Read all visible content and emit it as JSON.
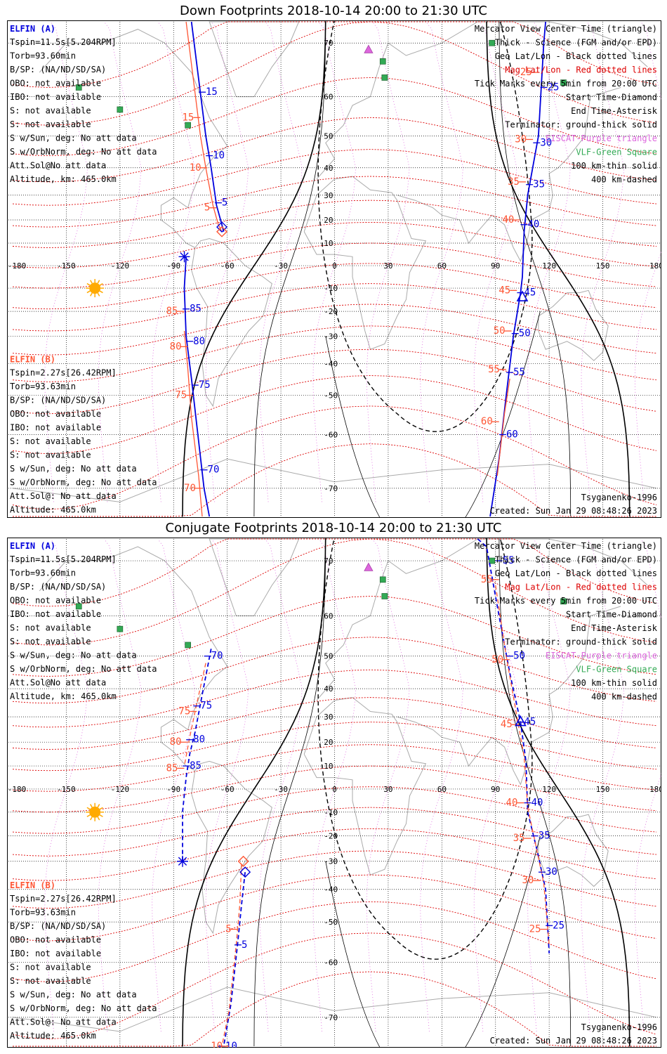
{
  "colors": {
    "elfin_a": "#0000dd",
    "elfin_b": "#ff5533",
    "mag_lines": "#dd0000",
    "eiscat": "#dd66dd",
    "vlf": "#33aa55",
    "sun": "#ffaa00",
    "coast": "#aaaaaa"
  },
  "common": {
    "lon_ticks": [
      "-180",
      "-150",
      "-120",
      "-90",
      "-60",
      "-30",
      "0",
      "30",
      "60",
      "90",
      "120",
      "150",
      "180"
    ],
    "lat_ticks": [
      "70",
      "60",
      "50",
      "40",
      "30",
      "20",
      "10",
      "0",
      "-10",
      "-20",
      "-30",
      "-40",
      "-50",
      "-60",
      "-70"
    ],
    "legend_right": [
      {
        "text": "Mercator View Center Time (triangle)",
        "color": "#000000"
      },
      {
        "text": "Thick - Science (FGM and/or EPD)",
        "color": "#000000"
      },
      {
        "text": "Geo Lat/Lon - Black dotted lines",
        "color": "#000000"
      },
      {
        "text": "Mag Lat/Lon - Red dotted lines",
        "color": "#dd0000"
      },
      {
        "text": "Tick Marks every 5min from 20:00 UTC",
        "color": "#000000"
      },
      {
        "text": "Start Time-Diamond",
        "color": "#000000"
      },
      {
        "text": "End Time-Asterisk",
        "color": "#000000"
      },
      {
        "text": "Terminator: ground-thick solid",
        "color": "#000000"
      },
      {
        "text": "EISCAT-Purple triangle",
        "color": "#dd66dd"
      },
      {
        "text": "VLF-Green Square",
        "color": "#33aa55"
      },
      {
        "text": "100 km-thin solid",
        "color": "#000000"
      },
      {
        "text": "400 km-dashed",
        "color": "#000000"
      }
    ],
    "info_a": {
      "name": "ELFIN (A)",
      "lines": [
        "Tspin=11.5s[5.204RPM]",
        "Torb=93.60min",
        "B/SP: (NA/ND/SD/SA)",
        "OBO: not available",
        "IBO: not available",
        "S: not available",
        "S: not available",
        "S w/Sun, deg: No att data",
        "S w/OrbNorm, deg: No att data",
        "Att.Sol@No att data",
        "Altitude, km: 465.0km"
      ]
    },
    "info_b": {
      "name": "ELFIN (B)",
      "lines": [
        "Tspin=2.27s[26.42RPM]",
        "Torb=93.63min",
        "B/SP: (NA/ND/SD/SA)",
        "OBO: not available",
        "IBO: not available",
        "S: not available",
        "S: not available",
        "S w/Sun, deg: No att data",
        "S w/OrbNorm, deg: No att data",
        "Att.Sol@: No att data",
        "Altitude: 465.0km"
      ]
    },
    "model": "Tsyganenko-1996",
    "created": "Created: Sun Jan 29 08:48:26 2023"
  },
  "panels": [
    {
      "title": "Down Footprints 2018-10-14 20:00 to 21:30 UTC",
      "tracks": [
        {
          "sat": "b",
          "dashed": false,
          "pts": [
            [
              -83,
              82
            ],
            [
              -75,
              50
            ],
            [
              -72,
              40
            ],
            [
              -68,
              26
            ],
            [
              -65,
              18
            ],
            [
              -63,
              15
            ]
          ]
        },
        {
          "sat": "a",
          "dashed": false,
          "pts": [
            [
              -80,
              82
            ],
            [
              -72,
              50
            ],
            [
              -69,
              40
            ],
            [
              -66,
              26
            ],
            [
              -63,
              18
            ],
            [
              -62,
              15
            ]
          ]
        },
        {
          "sat": "a",
          "dashed": false,
          "pts": [
            [
              -83,
              4
            ],
            [
              -84,
              -10
            ],
            [
              -83,
              -30
            ],
            [
              -80,
              -45
            ],
            [
              -77,
              -58
            ],
            [
              -73,
              -70
            ],
            [
              -70,
              -80
            ]
          ]
        },
        {
          "sat": "b",
          "dashed": false,
          "pts": [
            [
              -84,
              -28
            ],
            [
              -82,
              -42
            ],
            [
              -80,
              -56
            ],
            [
              -76,
              -68
            ],
            [
              -74,
              -80
            ]
          ]
        },
        {
          "sat": "a",
          "dashed": false,
          "pts": [
            [
              118,
              82
            ],
            [
              117,
              70
            ],
            [
              114,
              50
            ],
            [
              108,
              30
            ],
            [
              106,
              15
            ],
            [
              105,
              -5
            ],
            [
              104,
              -12
            ]
          ]
        },
        {
          "sat": "a",
          "dashed": false,
          "pts": [
            [
              104,
              -12
            ],
            [
              100,
              -30
            ],
            [
              96,
              -50
            ],
            [
              92,
              -65
            ],
            [
              87,
              -80
            ]
          ]
        },
        {
          "sat": "b",
          "dashed": false,
          "pts": [
            [
              98,
              -45
            ],
            [
              95,
              -55
            ],
            [
              91,
              -68
            ]
          ]
        }
      ],
      "ticks": [
        {
          "lon": -74,
          "lat": 61,
          "label": "15",
          "sat": "a"
        },
        {
          "lon": -77,
          "lat": 55,
          "label": "15",
          "sat": "b"
        },
        {
          "lon": -70,
          "lat": 44,
          "label": "10",
          "sat": "a"
        },
        {
          "lon": -73,
          "lat": 40,
          "label": "10",
          "sat": "b"
        },
        {
          "lon": -65,
          "lat": 27,
          "label": "5",
          "sat": "a"
        },
        {
          "lon": -68,
          "lat": 25,
          "label": "5",
          "sat": "b"
        },
        {
          "lon": -83,
          "lat": -19,
          "label": "85",
          "sat": "a"
        },
        {
          "lon": -86,
          "lat": -20,
          "label": "85",
          "sat": "b"
        },
        {
          "lon": -81,
          "lat": -32,
          "label": "80",
          "sat": "a"
        },
        {
          "lon": -84,
          "lat": -34,
          "label": "80",
          "sat": "b"
        },
        {
          "lon": -78,
          "lat": -47,
          "label": "75",
          "sat": "a"
        },
        {
          "lon": -81,
          "lat": -50,
          "label": "75",
          "sat": "b"
        },
        {
          "lon": -73,
          "lat": -67,
          "label": "70",
          "sat": "a"
        },
        {
          "lon": -76,
          "lat": -70,
          "label": "70",
          "sat": "b"
        },
        {
          "lon": 117,
          "lat": 62,
          "label": "25",
          "sat": "a"
        },
        {
          "lon": 112,
          "lat": 65,
          "label": "25",
          "sat": "b"
        },
        {
          "lon": 113,
          "lat": 48,
          "label": "30",
          "sat": "a"
        },
        {
          "lon": 109,
          "lat": 49,
          "label": "30",
          "sat": "b"
        },
        {
          "lon": 109,
          "lat": 34,
          "label": "35",
          "sat": "a"
        },
        {
          "lon": 105,
          "lat": 35,
          "label": "35",
          "sat": "b"
        },
        {
          "lon": 106,
          "lat": 18,
          "label": "40",
          "sat": "a"
        },
        {
          "lon": 102,
          "lat": 20,
          "label": "40",
          "sat": "b"
        },
        {
          "lon": 104,
          "lat": -12,
          "label": "45",
          "sat": "a"
        },
        {
          "lon": 100,
          "lat": -11,
          "label": "45",
          "sat": "b"
        },
        {
          "lon": 101,
          "lat": -29,
          "label": "50",
          "sat": "a"
        },
        {
          "lon": 97,
          "lat": -28,
          "label": "50",
          "sat": "b"
        },
        {
          "lon": 98,
          "lat": -43,
          "label": "55",
          "sat": "a"
        },
        {
          "lon": 94,
          "lat": -42,
          "label": "55",
          "sat": "b"
        },
        {
          "lon": 94,
          "lat": -60,
          "label": "60",
          "sat": "a"
        },
        {
          "lon": 90,
          "lat": -57,
          "label": "60",
          "sat": "b"
        }
      ],
      "start": {
        "lon": -63,
        "lat": 17
      },
      "start_b": {
        "lon": -63,
        "lat": 15
      },
      "end": {
        "lon": -84,
        "lat": 4
      },
      "center": {
        "lon": 105,
        "lat": -14
      },
      "sun": {
        "lon": -134,
        "lat": -10
      },
      "eiscat": [
        {
          "lon": 17,
          "lat": 83
        },
        {
          "lon": 19,
          "lat": 69
        }
      ],
      "vlf": [
        {
          "lon": -143,
          "lat": 62
        },
        {
          "lon": -120,
          "lat": 57
        },
        {
          "lon": -82,
          "lat": 53
        },
        {
          "lon": 27,
          "lat": 67
        },
        {
          "lon": 28,
          "lat": 64
        },
        {
          "lon": 88,
          "lat": 70
        },
        {
          "lon": 128,
          "lat": 63
        }
      ]
    },
    {
      "title": "Conjugate Footprints 2018-10-14 20:00 to 21:30 UTC",
      "tracks": [
        {
          "sat": "a",
          "dashed": true,
          "pts": [
            [
              -69,
              52
            ],
            [
              -74,
              38
            ],
            [
              -78,
              24
            ],
            [
              -81,
              15
            ],
            [
              -83,
              5
            ],
            [
              -85,
              -10
            ],
            [
              -85,
              -30
            ]
          ]
        },
        {
          "sat": "b",
          "dashed": true,
          "pts": [
            [
              -72,
              48
            ],
            [
              -77,
              35
            ],
            [
              -81,
              22
            ],
            [
              -84,
              10
            ]
          ]
        },
        {
          "sat": "a",
          "dashed": true,
          "pts": [
            [
              -50,
              -34
            ],
            [
              -52,
              -45
            ],
            [
              -54,
              -55
            ],
            [
              -58,
              -68
            ],
            [
              -62,
              -80
            ]
          ]
        },
        {
          "sat": "b",
          "dashed": true,
          "pts": [
            [
              -52,
              -31
            ],
            [
              -53,
              -45
            ],
            [
              -55,
              -56
            ],
            [
              -59,
              -69
            ],
            [
              -63,
              -78
            ]
          ]
        },
        {
          "sat": "a",
          "dashed": true,
          "pts": [
            [
              80,
              82
            ],
            [
              85,
              72
            ],
            [
              92,
              60
            ],
            [
              98,
              45
            ],
            [
              104,
              28
            ],
            [
              107,
              12
            ],
            [
              108,
              -10
            ],
            [
              113,
              -25
            ],
            [
              118,
              -40
            ],
            [
              120,
              -58
            ]
          ]
        },
        {
          "sat": "b",
          "dashed": true,
          "pts": [
            [
              90,
              66
            ],
            [
              96,
              50
            ],
            [
              102,
              30
            ],
            [
              106,
              14
            ],
            [
              108,
              -8
            ],
            [
              112,
              -22
            ],
            [
              117,
              -38
            ],
            [
              120,
              -56
            ]
          ]
        }
      ],
      "ticks": [
        {
          "lon": -71,
          "lat": 50,
          "label": "70",
          "sat": "a"
        },
        {
          "lon": -77,
          "lat": 34,
          "label": "75",
          "sat": "a"
        },
        {
          "lon": -79,
          "lat": 32,
          "label": "75",
          "sat": "b"
        },
        {
          "lon": -81,
          "lat": 21,
          "label": "80",
          "sat": "a"
        },
        {
          "lon": -84,
          "lat": 20,
          "label": "80",
          "sat": "b"
        },
        {
          "lon": -83,
          "lat": 10,
          "label": "85",
          "sat": "a"
        },
        {
          "lon": -86,
          "lat": 9,
          "label": "85",
          "sat": "b"
        },
        {
          "lon": -54,
          "lat": -56,
          "label": "5",
          "sat": "a"
        },
        {
          "lon": -56,
          "lat": -52,
          "label": "5",
          "sat": "b"
        },
        {
          "lon": -63,
          "lat": -80,
          "label": "10",
          "sat": "a"
        },
        {
          "lon": -61,
          "lat": -77,
          "label": "10",
          "sat": "b"
        },
        {
          "lon": 92,
          "lat": 70,
          "label": "55",
          "sat": "a"
        },
        {
          "lon": 90,
          "lat": 67,
          "label": "55",
          "sat": "b"
        },
        {
          "lon": 98,
          "lat": 50,
          "label": "50",
          "sat": "a"
        },
        {
          "lon": 96,
          "lat": 49,
          "label": "50",
          "sat": "b"
        },
        {
          "lon": 104,
          "lat": 28,
          "label": "45",
          "sat": "a"
        },
        {
          "lon": 101,
          "lat": 27,
          "label": "45",
          "sat": "b"
        },
        {
          "lon": 108,
          "lat": -6,
          "label": "40",
          "sat": "a"
        },
        {
          "lon": 104,
          "lat": -6,
          "label": "40",
          "sat": "b"
        },
        {
          "lon": 112,
          "lat": -20,
          "label": "35",
          "sat": "a"
        },
        {
          "lon": 108,
          "lat": -21,
          "label": "35",
          "sat": "b"
        },
        {
          "lon": 116,
          "lat": -34,
          "label": "30",
          "sat": "a"
        },
        {
          "lon": 113,
          "lat": -37,
          "label": "30",
          "sat": "b"
        },
        {
          "lon": 120,
          "lat": -51,
          "label": "25",
          "sat": "a"
        },
        {
          "lon": 117,
          "lat": -52,
          "label": "25",
          "sat": "b"
        }
      ],
      "start": {
        "lon": -50,
        "lat": -34
      },
      "start_b": {
        "lon": -51,
        "lat": -30
      },
      "end": {
        "lon": -85,
        "lat": -30
      },
      "center": {
        "lon": 104,
        "lat": 28
      },
      "sun": {
        "lon": -134,
        "lat": -10
      },
      "eiscat": [
        {
          "lon": 17,
          "lat": 83
        },
        {
          "lon": 19,
          "lat": 69
        }
      ],
      "vlf": [
        {
          "lon": -143,
          "lat": 62
        },
        {
          "lon": -120,
          "lat": 57
        },
        {
          "lon": -82,
          "lat": 53
        },
        {
          "lon": 27,
          "lat": 67
        },
        {
          "lon": 28,
          "lat": 64
        },
        {
          "lon": 88,
          "lat": 70
        },
        {
          "lon": 128,
          "lat": 63
        }
      ]
    }
  ]
}
